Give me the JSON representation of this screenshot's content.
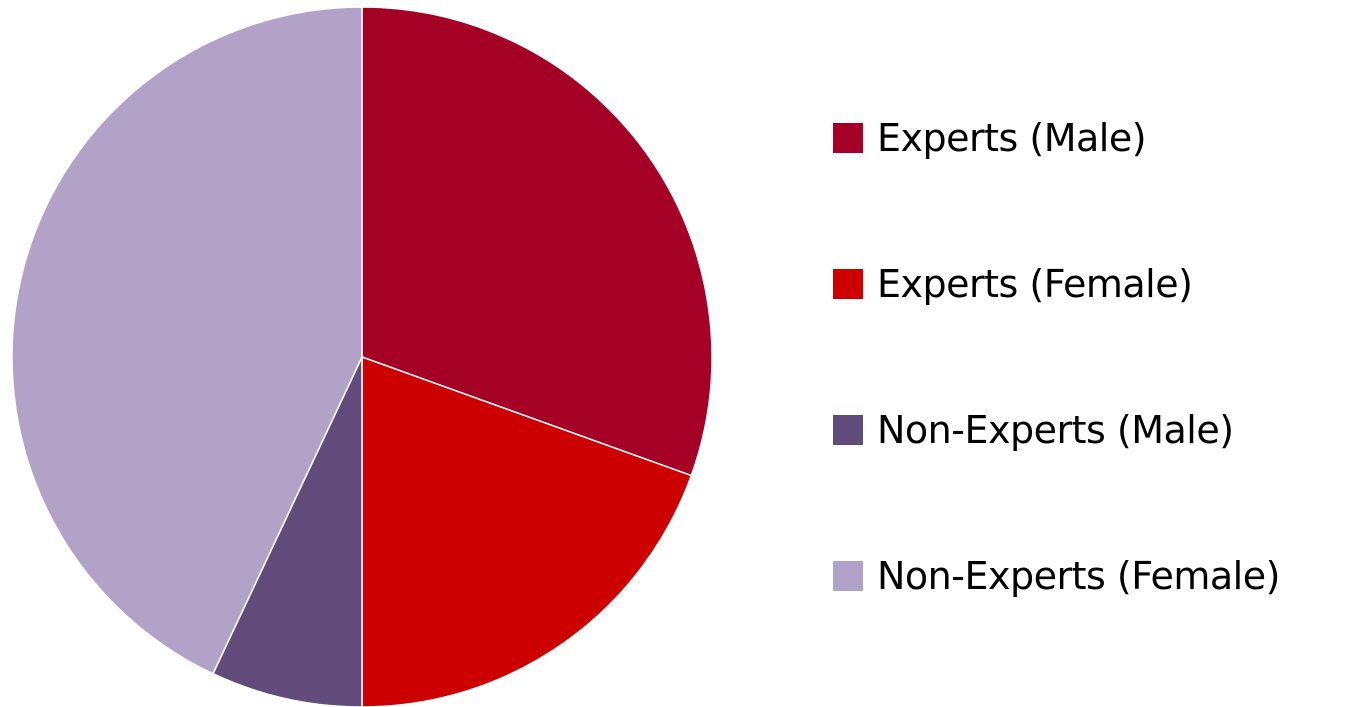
{
  "chart_data": {
    "type": "pie",
    "title": "",
    "start_angle_deg": 0,
    "direction": "clockwise",
    "legend_position": "right",
    "slices": [
      {
        "label": "Experts (Male)",
        "value": 30.5,
        "color": "#a50026"
      },
      {
        "label": "Experts (Female)",
        "value": 19.5,
        "color": "#cc0000"
      },
      {
        "label": "Non-Experts (Male)",
        "value": 7.0,
        "color": "#614b7b"
      },
      {
        "label": "Non-Experts (Female)",
        "value": 43.0,
        "color": "#b3a2c7"
      }
    ]
  }
}
